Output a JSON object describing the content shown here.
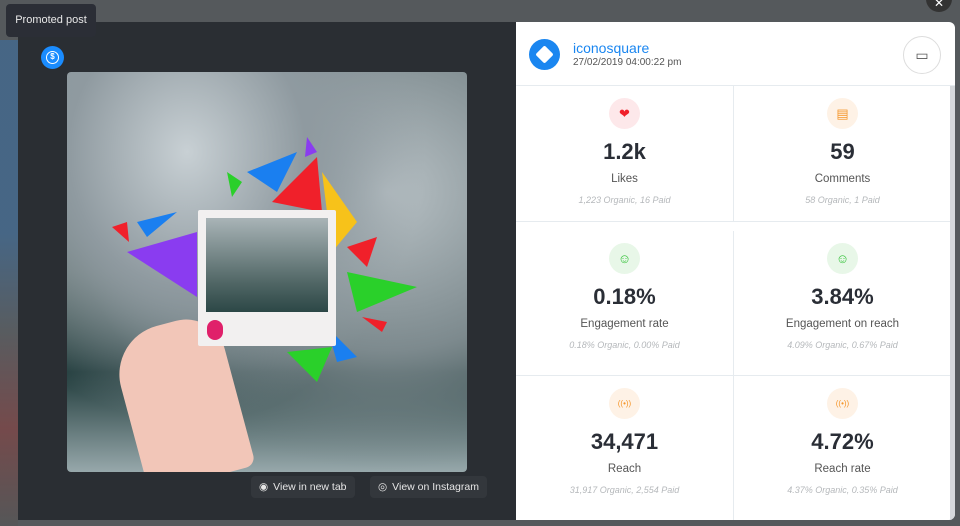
{
  "tooltip": "Promoted post",
  "post": {
    "account": "iconosquare",
    "date": "27/02/2019 04:00:22 pm"
  },
  "actions": {
    "new_tab": "View in new tab",
    "instagram": "View on Instagram"
  },
  "stats": [
    {
      "icon": "heart-icon",
      "value": "1.2k",
      "label": "Likes",
      "detail": "1,223 Organic, 16 Paid",
      "color": "#f0202a",
      "bg": "#fde8ea"
    },
    {
      "icon": "comment-icon",
      "value": "59",
      "label": "Comments",
      "detail": "58 Organic, 1 Paid",
      "color": "#f5962a",
      "bg": "#fef2e6"
    },
    {
      "icon": "smiley-icon",
      "value": "0.18%",
      "label": "Engagement rate",
      "detail": "0.18% Organic, 0.00% Paid",
      "color": "#35c23a",
      "bg": "#e8f7e8"
    },
    {
      "icon": "smiley-icon",
      "value": "3.84%",
      "label": "Engagement on reach",
      "detail": "4.09% Organic, 0.67% Paid",
      "color": "#35c23a",
      "bg": "#e8f7e8"
    },
    {
      "icon": "broadcast-icon",
      "value": "34,471",
      "label": "Reach",
      "detail": "31,917 Organic, 2,554 Paid",
      "color": "#f5962a",
      "bg": "#fef2e6"
    },
    {
      "icon": "broadcast-icon",
      "value": "4.72%",
      "label": "Reach rate",
      "detail": "4.37% Organic, 0.35% Paid",
      "color": "#f5962a",
      "bg": "#fef2e6"
    }
  ]
}
